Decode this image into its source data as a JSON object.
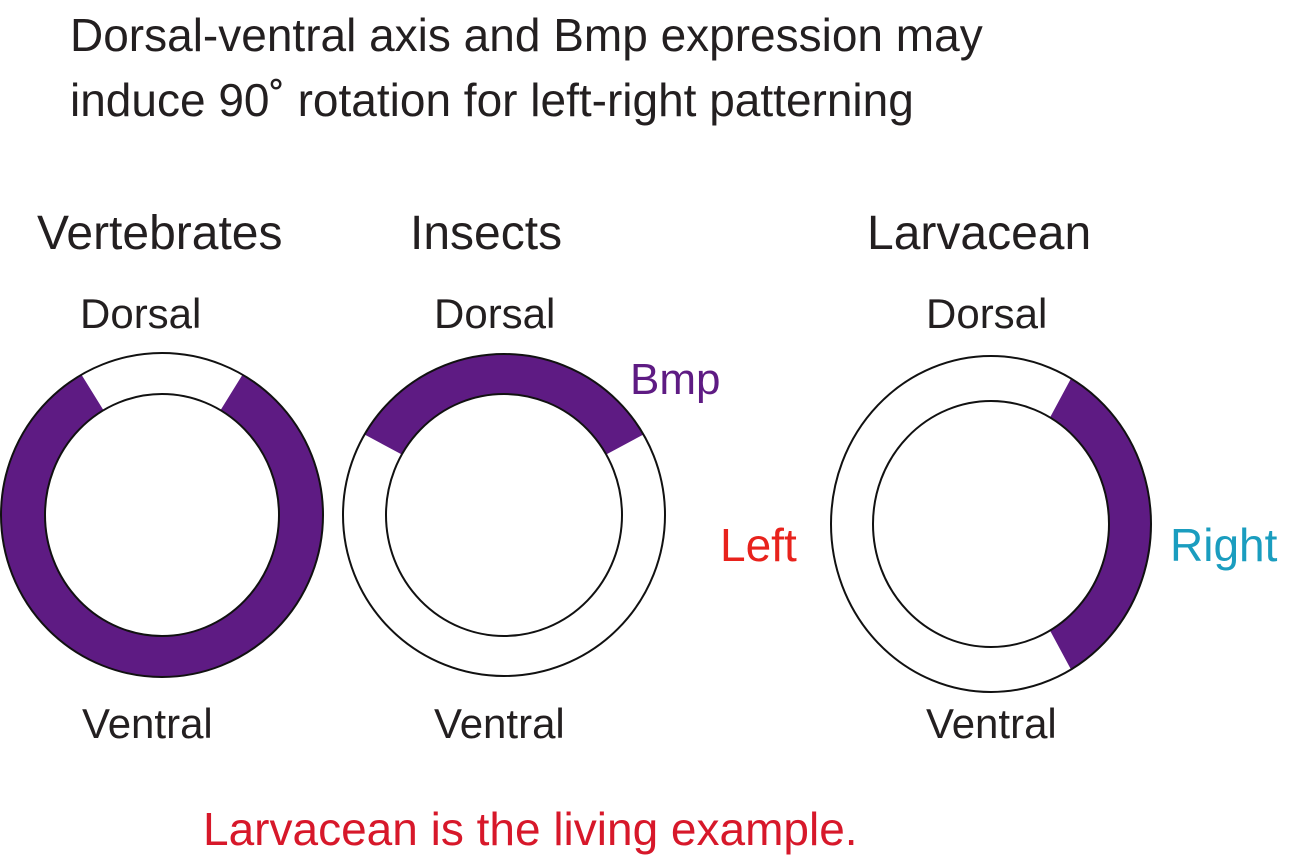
{
  "title": [
    "Dorsal-ventral axis and Bmp expression may",
    "induce 90˚ rotation for left-right patterning"
  ],
  "panels": [
    {
      "name": "Vertebrates",
      "top": "Dorsal",
      "bottom": "Ventral"
    },
    {
      "name": "Insects",
      "top": "Dorsal",
      "bottom": "Ventral",
      "marker": "Bmp"
    },
    {
      "name": "Larvacean",
      "top": "Dorsal",
      "bottom": "Ventral",
      "left": "Left",
      "right": "Right"
    }
  ],
  "conclusion": "Larvacean is the living example.",
  "colors": {
    "bmp": "#5e1b83",
    "left": "#e8221c",
    "right": "#1a9dbf",
    "conclusion": "#d7182a",
    "text": "#231f20"
  }
}
